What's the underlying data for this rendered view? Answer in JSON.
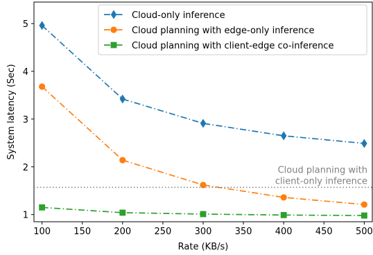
{
  "chart_data": {
    "type": "line",
    "xlabel": "Rate (KB/s)",
    "ylabel": "System latency (Sec)",
    "xlim": [
      90,
      510
    ],
    "ylim": [
      0.85,
      5.45
    ],
    "xticks": [
      100,
      150,
      200,
      250,
      300,
      350,
      400,
      450,
      500
    ],
    "yticks": [
      1,
      2,
      3,
      4,
      5
    ],
    "grid": false,
    "legend_position": "top-right",
    "x": [
      100,
      200,
      300,
      400,
      500
    ],
    "series": [
      {
        "name": "Cloud-only inference",
        "values": [
          4.96,
          3.42,
          2.91,
          2.65,
          2.49
        ],
        "color": "#1f77b4",
        "marker": "diamond",
        "linestyle": "dash-dot"
      },
      {
        "name": "Cloud planning with edge-only inference",
        "values": [
          3.68,
          2.14,
          1.62,
          1.36,
          1.21
        ],
        "color": "#ff7f0e",
        "marker": "circle",
        "linestyle": "dash-dot"
      },
      {
        "name": "Cloud planning with client-edge co-inference",
        "values": [
          1.15,
          1.04,
          1.01,
          0.99,
          0.98
        ],
        "color": "#2ca02c",
        "marker": "square",
        "linestyle": "dash-dot"
      }
    ],
    "reference_line": {
      "value": 1.57,
      "color": "#808080",
      "linestyle": "dotted",
      "label_line1": "Cloud planning with",
      "label_line2": "client-only inference"
    }
  }
}
